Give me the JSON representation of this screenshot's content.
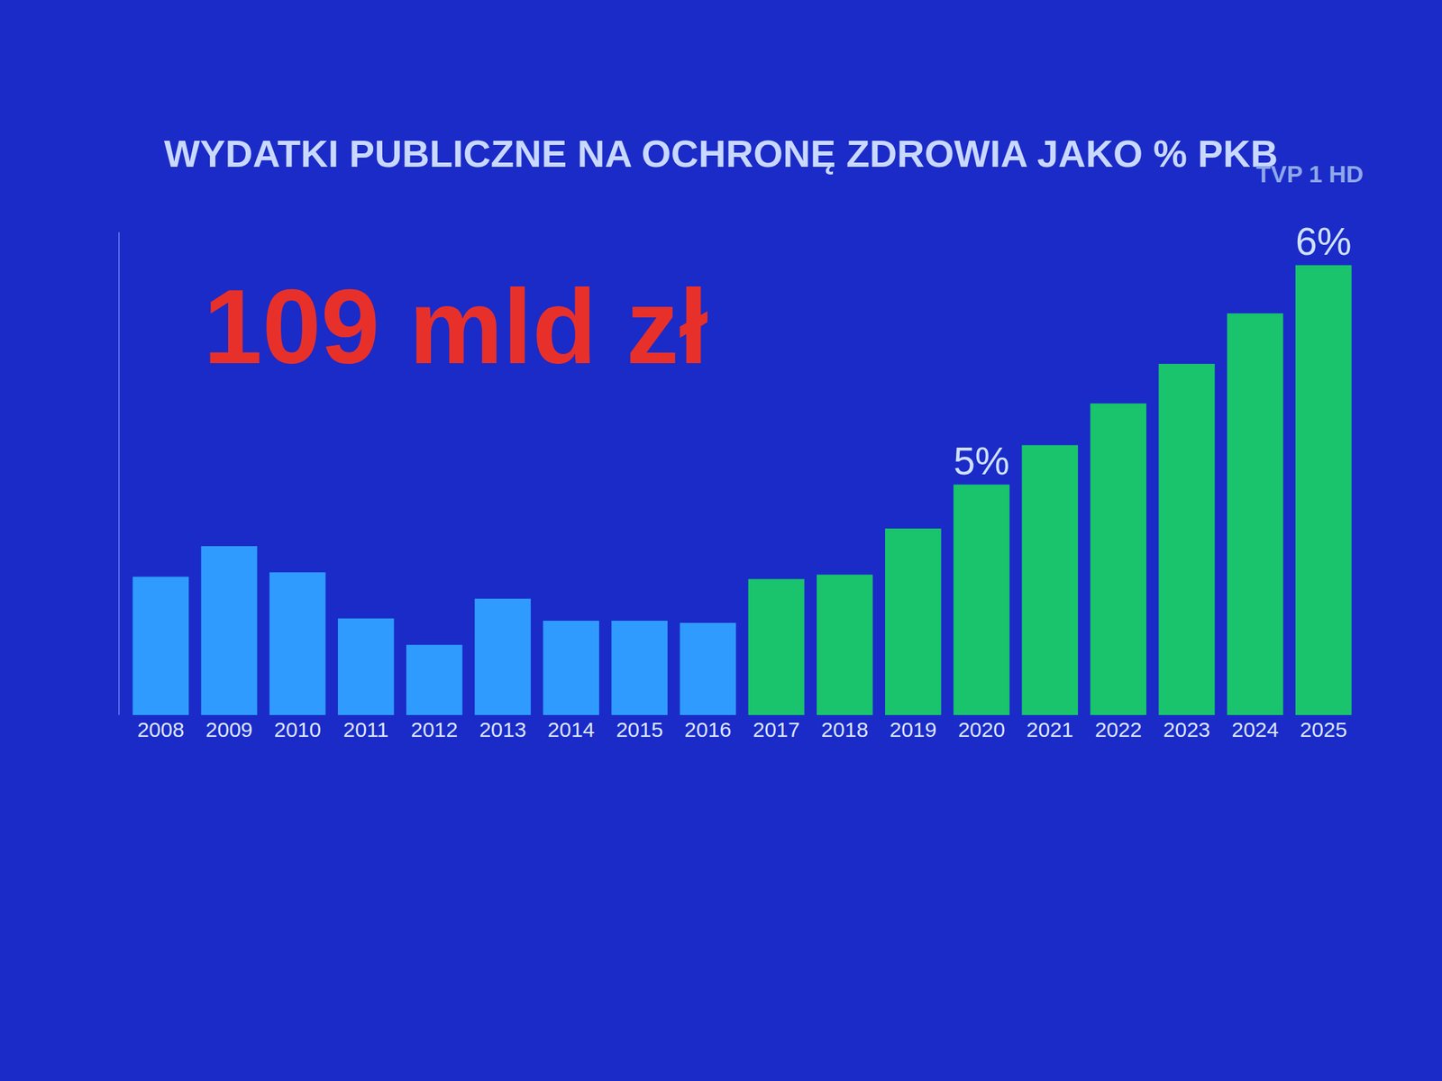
{
  "chart_data": {
    "type": "bar",
    "title": "WYDATKI PUBLICZNE NA OCHRONĘ ZDROWIA JAKO % PKB",
    "logo": "TVP 1 HD",
    "annotations": [
      "109 mld zł"
    ],
    "categories": [
      "2008",
      "2009",
      "2010",
      "2011",
      "2012",
      "2013",
      "2014",
      "2015",
      "2016",
      "2017",
      "2018",
      "2019",
      "2020",
      "2021",
      "2022",
      "2023",
      "2024",
      "2025"
    ],
    "values": [
      4.58,
      4.72,
      4.6,
      4.39,
      4.27,
      4.48,
      4.38,
      4.38,
      4.37,
      4.57,
      4.59,
      4.8,
      5.0,
      5.18,
      5.37,
      5.55,
      5.78,
      6.0
    ],
    "value_labels": [
      null,
      null,
      null,
      null,
      null,
      null,
      null,
      null,
      null,
      null,
      null,
      null,
      "5%",
      null,
      null,
      null,
      null,
      "6%"
    ],
    "colors": [
      "#2f9bff",
      "#2f9bff",
      "#2f9bff",
      "#2f9bff",
      "#2f9bff",
      "#2f9bff",
      "#2f9bff",
      "#2f9bff",
      "#2f9bff",
      "#19c46c",
      "#19c46c",
      "#19c46c",
      "#19c46c",
      "#19c46c",
      "#19c46c",
      "#19c46c",
      "#19c46c",
      "#19c46c"
    ],
    "data_labels": true,
    "ylim": [
      3.95,
      6.15
    ],
    "grid": false,
    "tick_labels": "x"
  }
}
